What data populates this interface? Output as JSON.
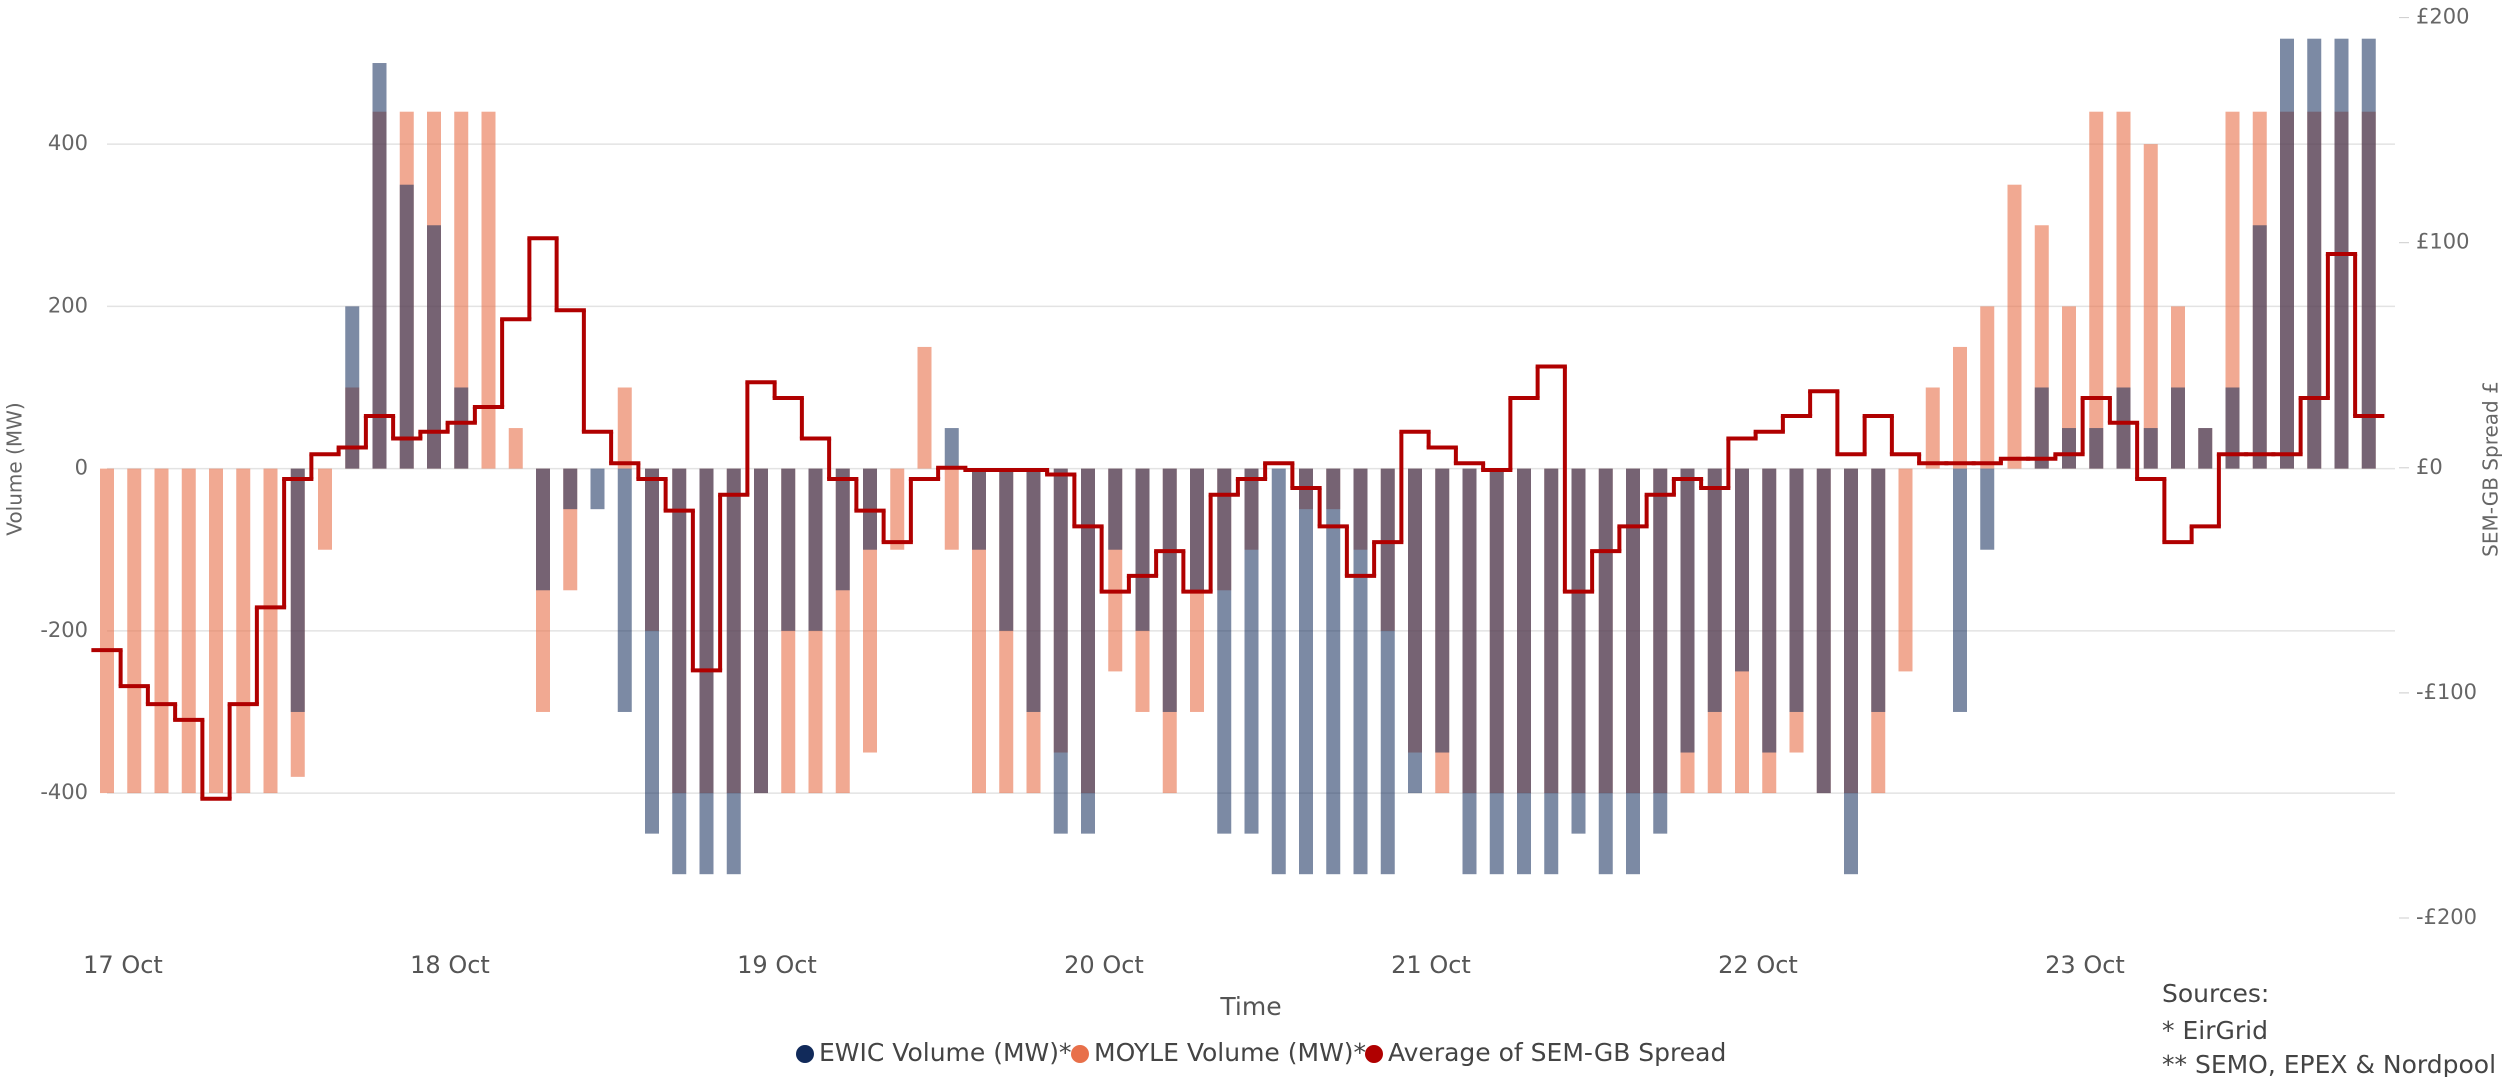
{
  "chart_data": {
    "type": "bar",
    "categories": [
      "17 Oct",
      null,
      null,
      null,
      null,
      null,
      null,
      null,
      null,
      null,
      null,
      null,
      "18 Oct",
      null,
      null,
      null,
      null,
      null,
      null,
      null,
      null,
      null,
      null,
      null,
      "19 Oct",
      null,
      null,
      null,
      null,
      null,
      null,
      null,
      null,
      null,
      null,
      null,
      "20 Oct",
      null,
      null,
      null,
      null,
      null,
      null,
      null,
      null,
      null,
      null,
      null,
      "21 Oct",
      null,
      null,
      null,
      null,
      null,
      null,
      null,
      null,
      null,
      null,
      null,
      "22 Oct",
      null,
      null,
      null,
      null,
      null,
      null,
      null,
      null,
      null,
      null,
      null,
      "23 Oct",
      null,
      null,
      null,
      null,
      null,
      null,
      null,
      null,
      null,
      null,
      null
    ],
    "x_label": "Time",
    "y_label": "Volume (MW)",
    "y2_label": "SEM-GB Spread £",
    "ylim": [
      -554,
      556
    ],
    "yticks": [
      -400,
      -200,
      0,
      200,
      400
    ],
    "y2lim": [
      -200,
      200
    ],
    "y2ticks": [
      {
        "value": -200,
        "label": "-£200"
      },
      {
        "value": -100,
        "label": "-£100"
      },
      {
        "value": 0,
        "label": "£0"
      },
      {
        "value": 100,
        "label": "£100"
      },
      {
        "value": 200,
        "label": "£200"
      }
    ],
    "grid": true,
    "series": [
      {
        "name": "MOYLE Volume (MW)*",
        "type": "bar",
        "color": "#e8704a",
        "values": [
          -400,
          -400,
          -400,
          -400,
          -400,
          -400,
          -400,
          -380,
          -100,
          100,
          440,
          440,
          440,
          440,
          440,
          50,
          -300,
          -150,
          0,
          100,
          -200,
          -400,
          -400,
          -400,
          -400,
          -400,
          -400,
          -400,
          -350,
          -100,
          150,
          -100,
          -400,
          -400,
          -400,
          -350,
          -400,
          -250,
          -300,
          -400,
          -300,
          -150,
          -100,
          0,
          -50,
          -50,
          -100,
          -200,
          -350,
          -400,
          -400,
          -400,
          -400,
          -400,
          -400,
          -400,
          -400,
          -400,
          -400,
          -400,
          -400,
          -400,
          -350,
          -400,
          -400,
          -400,
          -250,
          100,
          150,
          200,
          350,
          300,
          200,
          440,
          440,
          400,
          200,
          50,
          440,
          440,
          440,
          440,
          440,
          440
        ]
      },
      {
        "name": "EWIC Volume (MW)*",
        "type": "bar",
        "color": "#112a5a",
        "values": [
          0,
          0,
          0,
          0,
          0,
          0,
          0,
          -300,
          0,
          200,
          500,
          350,
          300,
          100,
          0,
          0,
          -150,
          -50,
          -50,
          -300,
          -450,
          -500,
          -500,
          -500,
          -400,
          -200,
          -200,
          -150,
          -100,
          0,
          0,
          50,
          -100,
          -200,
          -300,
          -450,
          -450,
          -100,
          -200,
          -300,
          -150,
          -450,
          -450,
          -500,
          -500,
          -500,
          -500,
          -500,
          -400,
          -350,
          -500,
          -500,
          -500,
          -500,
          -450,
          -500,
          -500,
          -450,
          -350,
          -300,
          -250,
          -350,
          -300,
          -400,
          -500,
          -300,
          0,
          0,
          -300,
          -100,
          0,
          100,
          50,
          50,
          100,
          50,
          100,
          50,
          100,
          300,
          530,
          530,
          530,
          530
        ]
      },
      {
        "name": "Average of SEM-GB Spread",
        "type": "line",
        "axis": "y2",
        "color": "#b00000",
        "values": [
          -81,
          -97,
          -105,
          -112,
          -147,
          -105,
          -62,
          -5,
          6,
          9,
          23,
          13,
          16,
          20,
          27,
          66,
          102,
          70,
          16,
          2,
          -5,
          -19,
          -90,
          -12,
          38,
          31,
          13,
          -5,
          -19,
          -33,
          -5,
          0,
          -1,
          -1,
          -1,
          -3,
          -26,
          -55,
          -48,
          -37,
          -55,
          -12,
          -5,
          2,
          -9,
          -26,
          -48,
          -33,
          16,
          9,
          2,
          -1,
          31,
          45,
          -55,
          -37,
          -26,
          -12,
          -5,
          -9,
          13,
          16,
          23,
          34,
          6,
          23,
          6,
          2,
          2,
          2,
          4,
          4,
          6,
          31,
          20,
          -5,
          -33,
          -26,
          6,
          6,
          6,
          31,
          95,
          23
        ]
      }
    ]
  },
  "sources": {
    "title": "Sources:",
    "items": [
      "* EirGrid",
      "** SEMO, EPEX & Nordpool"
    ]
  }
}
